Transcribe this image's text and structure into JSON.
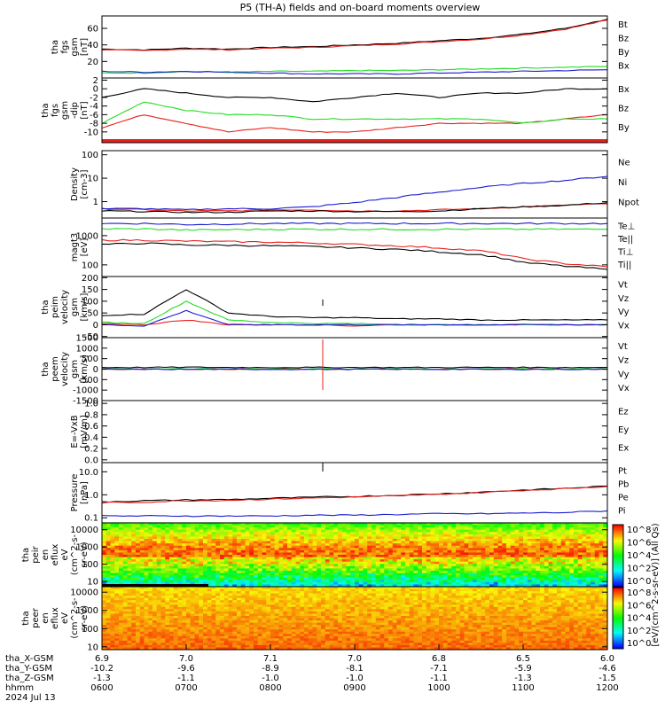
{
  "title": "P5 (TH-A) fields and on-board moments overview",
  "colors": {
    "black": "#000000",
    "red": "#e8201a",
    "green": "#22dd22",
    "blue": "#1a1ad0"
  },
  "time_axis": {
    "ticks": [
      "0600",
      "0700",
      "0800",
      "0900",
      "1000",
      "1100",
      "1200"
    ],
    "row_labels": [
      "tha_X-GSM",
      "tha_Y-GSM",
      "tha_Z-GSM",
      "hhmm",
      "2024 Jul 13"
    ],
    "x_gsm": [
      "6.9",
      "7.0",
      "7.1",
      "7.0",
      "6.8",
      "6.5",
      "6.0"
    ],
    "y_gsm": [
      "-10.2",
      "-9.6",
      "-8.9",
      "-8.1",
      "-7.1",
      "-5.9",
      "-4.6"
    ],
    "z_gsm": [
      "-1.3",
      "-1.1",
      "-1.0",
      "-1.0",
      "-1.1",
      "-1.3",
      "-1.5"
    ]
  },
  "colorbar_label": "[eV/(cm^2-s-sr-eV)] (All Qs)",
  "chart_data": [
    {
      "type": "line",
      "ylabel": [
        "tha",
        "fgs",
        "gsm",
        "[nT]"
      ],
      "ylim": [
        0,
        75
      ],
      "yticks": [
        "60",
        "40",
        "20"
      ],
      "x": [
        "0600",
        "0630",
        "0700",
        "0730",
        "0800",
        "0830",
        "0900",
        "0930",
        "1000",
        "1030",
        "1100",
        "1130",
        "1200"
      ],
      "series": [
        {
          "name": "Bt",
          "color": "#000000",
          "values": [
            35,
            34,
            36,
            35,
            37,
            38,
            40,
            42,
            45,
            48,
            53,
            60,
            71
          ]
        },
        {
          "name": "Bz",
          "color": "#e8201a",
          "values": [
            34,
            33,
            35,
            34,
            36,
            37,
            39,
            41,
            44,
            47,
            52,
            59,
            70
          ]
        },
        {
          "name": "By",
          "color": "#22dd22",
          "values": [
            6,
            6,
            8,
            7,
            8,
            8,
            9,
            9,
            10,
            11,
            12,
            13,
            14
          ]
        },
        {
          "name": "Bx",
          "color": "#1a1ad0",
          "values": [
            8,
            7,
            8,
            7,
            6,
            5,
            5,
            5,
            6,
            7,
            8,
            9,
            10
          ]
        }
      ]
    },
    {
      "type": "line",
      "ylabel": [
        "tha",
        "fgs",
        "gsm",
        "-dip",
        "[nT]"
      ],
      "ylim": [
        -12.5,
        2.5
      ],
      "yticks": [
        "2",
        "0",
        "-2",
        "-4",
        "-6",
        "-8",
        "-10"
      ],
      "x": [
        "0600",
        "0630",
        "0700",
        "0730",
        "0800",
        "0830",
        "0900",
        "0930",
        "1000",
        "1030",
        "1100",
        "1130",
        "1200"
      ],
      "series": [
        {
          "name": "Bx",
          "color": "#000000",
          "values": [
            -2,
            0,
            -1,
            -2,
            -2,
            -3,
            -2,
            -1,
            -2,
            -1,
            -1,
            0,
            0
          ]
        },
        {
          "name": "Bz",
          "color": "#e8201a",
          "values": [
            -9,
            -6,
            -8,
            -10,
            -9,
            -10,
            -10,
            -9,
            -8,
            -8,
            -8,
            -7,
            -6
          ]
        },
        {
          "name": "By",
          "color": "#22dd22",
          "values": [
            -8,
            -3,
            -5,
            -6,
            -6,
            -7,
            -7,
            -7,
            -7,
            -7,
            -8,
            -7,
            -7
          ]
        }
      ]
    },
    {
      "type": "line",
      "ylabel": [
        "Density",
        "[cm-3]"
      ],
      "scale": "log",
      "ylim": [
        0.2,
        150
      ],
      "yticks": [
        "100",
        "10",
        "1"
      ],
      "x": [
        "0600",
        "0630",
        "0700",
        "0730",
        "0800",
        "0830",
        "0900",
        "0930",
        "1000",
        "1030",
        "1100",
        "1130",
        "1200"
      ],
      "series": [
        {
          "name": "Ne",
          "color": "#e8201a",
          "values": [
            0.5,
            0.45,
            0.4,
            0.4,
            0.45,
            0.45,
            0.4,
            0.4,
            0.45,
            0.5,
            0.6,
            0.7,
            0.8
          ]
        },
        {
          "name": "Ni",
          "color": "#000000",
          "values": [
            0.4,
            0.38,
            0.35,
            0.35,
            0.4,
            0.4,
            0.38,
            0.38,
            0.4,
            0.5,
            0.6,
            0.7,
            0.9
          ]
        },
        {
          "name": "Npot",
          "color": "#1a1ad0",
          "values": [
            0.5,
            0.5,
            0.45,
            0.5,
            0.5,
            0.6,
            0.9,
            1.5,
            2.5,
            4,
            6,
            8,
            12
          ]
        }
      ]
    },
    {
      "type": "line",
      "ylabel": [
        "magt3",
        "[eV]"
      ],
      "scale": "log",
      "ylim": [
        40,
        4000
      ],
      "yticks": [
        "1000",
        "100"
      ],
      "x": [
        "0600",
        "0630",
        "0700",
        "0730",
        "0800",
        "0830",
        "0900",
        "0930",
        "1000",
        "1030",
        "1100",
        "1130",
        "1200"
      ],
      "series": [
        {
          "name": "Te⊥",
          "color": "#1a1ad0",
          "values": [
            2600,
            2600,
            2400,
            2500,
            2600,
            2600,
            2600,
            2600,
            2600,
            2600,
            2600,
            2600,
            2600
          ]
        },
        {
          "name": "Te||",
          "color": "#000000",
          "values": [
            500,
            550,
            480,
            470,
            450,
            420,
            380,
            340,
            280,
            220,
            120,
            90,
            70
          ]
        },
        {
          "name": "Ti⊥",
          "color": "#e8201a",
          "values": [
            700,
            700,
            650,
            620,
            600,
            560,
            500,
            450,
            380,
            300,
            160,
            110,
            85
          ]
        },
        {
          "name": "Ti||",
          "color": "#22dd22",
          "values": [
            1700,
            1700,
            1550,
            1600,
            1650,
            1650,
            1650,
            1650,
            1650,
            1650,
            1650,
            1650,
            1650
          ]
        }
      ]
    },
    {
      "type": "line",
      "ylabel": [
        "tha",
        "peim",
        "velocity",
        "gsm",
        "[km/s]"
      ],
      "ylim": [
        -55,
        205
      ],
      "yticks": [
        "200",
        "150",
        "100",
        "50",
        "0",
        "-50"
      ],
      "x": [
        "0600",
        "0630",
        "0700",
        "0730",
        "0800",
        "0830",
        "0900",
        "0930",
        "1000",
        "1030",
        "1100",
        "1130",
        "1200"
      ],
      "series": [
        {
          "name": "Vt",
          "color": "#000000",
          "values": [
            40,
            45,
            150,
            50,
            35,
            30,
            30,
            25,
            25,
            20,
            20,
            20,
            20
          ]
        },
        {
          "name": "Vz",
          "color": "#e8201a",
          "values": [
            5,
            0,
            20,
            0,
            0,
            0,
            -5,
            0,
            0,
            0,
            0,
            0,
            0
          ]
        },
        {
          "name": "Vy",
          "color": "#22dd22",
          "values": [
            10,
            5,
            100,
            20,
            10,
            5,
            5,
            0,
            0,
            0,
            0,
            0,
            0
          ]
        },
        {
          "name": "Vx",
          "color": "#1a1ad0",
          "values": [
            0,
            -5,
            60,
            0,
            0,
            0,
            0,
            0,
            0,
            0,
            0,
            0,
            0
          ]
        }
      ]
    },
    {
      "type": "line",
      "ylabel": [
        "tha",
        "peem",
        "velocity",
        "gsm",
        "[km/s]"
      ],
      "ylim": [
        -1500,
        1500
      ],
      "yticks": [
        "1500",
        "1000",
        "500",
        "0",
        "-500",
        "-1000",
        "-1500"
      ],
      "x": [
        "0600",
        "0630",
        "0700",
        "0730",
        "0800",
        "0830",
        "0900",
        "0930",
        "1000",
        "1030",
        "1100",
        "1130",
        "1200"
      ],
      "series": [
        {
          "name": "Vt",
          "color": "#000000",
          "values": [
            80,
            80,
            90,
            80,
            80,
            80,
            80,
            80,
            80,
            80,
            80,
            80,
            80
          ]
        },
        {
          "name": "Vz",
          "color": "#e8201a",
          "values": [
            0,
            0,
            0,
            0,
            0,
            0,
            0,
            0,
            0,
            0,
            0,
            0,
            0
          ]
        },
        {
          "name": "Vy",
          "color": "#22dd22",
          "values": [
            10,
            10,
            10,
            10,
            10,
            10,
            10,
            10,
            10,
            10,
            10,
            10,
            10
          ]
        },
        {
          "name": "Vx",
          "color": "#1a1ad0",
          "values": [
            -10,
            -10,
            -10,
            -10,
            -10,
            -10,
            -10,
            -10,
            -10,
            -10,
            -10,
            -10,
            -10
          ]
        }
      ]
    },
    {
      "type": "line",
      "ylabel": [
        "E=-VxB",
        "[mV/m]"
      ],
      "ylim": [
        -0.05,
        1.05
      ],
      "yticks": [
        "1.0",
        "0.8",
        "0.6",
        "0.4",
        "0.2",
        "0.0"
      ],
      "x": [],
      "series": [
        {
          "name": "Ez",
          "color": "#e8201a",
          "values": []
        },
        {
          "name": "Ey",
          "color": "#22dd22",
          "values": []
        },
        {
          "name": "Ex",
          "color": "#1a1ad0",
          "values": []
        }
      ]
    },
    {
      "type": "line",
      "ylabel": [
        "Pressure",
        "[nPa]"
      ],
      "scale": "log",
      "ylim": [
        0.06,
        25
      ],
      "yticks": [
        "10.0",
        "1.0",
        "0.1"
      ],
      "x": [
        "0600",
        "0630",
        "0700",
        "0730",
        "0800",
        "0830",
        "0900",
        "0930",
        "1000",
        "1030",
        "1100",
        "1130",
        "1200"
      ],
      "series": [
        {
          "name": "Pt",
          "color": "#000000",
          "values": [
            0.5,
            0.55,
            0.6,
            0.62,
            0.7,
            0.78,
            0.85,
            0.95,
            1.1,
            1.3,
            1.6,
            1.9,
            2.4
          ]
        },
        {
          "name": "Pb",
          "color": "#e8201a",
          "values": [
            0.45,
            0.48,
            0.55,
            0.58,
            0.65,
            0.72,
            0.8,
            0.9,
            1.05,
            1.25,
            1.55,
            1.85,
            2.3
          ]
        },
        {
          "name": "Pe",
          "color": "#22dd22",
          "values": [
            0.03,
            0.03,
            0.03,
            0.03,
            0.03,
            0.03,
            0.03,
            0.03,
            0.03,
            0.03,
            0.03,
            0.03,
            0.03
          ]
        },
        {
          "name": "Pi",
          "color": "#1a1ad0",
          "values": [
            0.12,
            0.12,
            0.12,
            0.12,
            0.12,
            0.13,
            0.13,
            0.14,
            0.15,
            0.15,
            0.16,
            0.17,
            0.2
          ]
        }
      ]
    },
    {
      "type": "heatmap",
      "ylabel": [
        "tha",
        "peir",
        "en",
        "eflux",
        "eV",
        "(cm^2-s-",
        "sr-eV)"
      ],
      "scale": "log",
      "ylim": [
        5,
        25000
      ],
      "yticks": [
        "10000",
        "1000",
        "100",
        "10"
      ]
    },
    {
      "type": "heatmap",
      "ylabel": [
        "tha",
        "peer",
        "en",
        "eflux",
        "eV",
        "(cm^2-s-",
        "sr-eV)"
      ],
      "scale": "log",
      "ylim": [
        7,
        20000
      ],
      "yticks": [
        "10000",
        "1000",
        "100",
        "10"
      ]
    }
  ],
  "colorbar_ticks": [
    "10^8",
    "10^6",
    "10^4",
    "10^2",
    "10^0"
  ]
}
